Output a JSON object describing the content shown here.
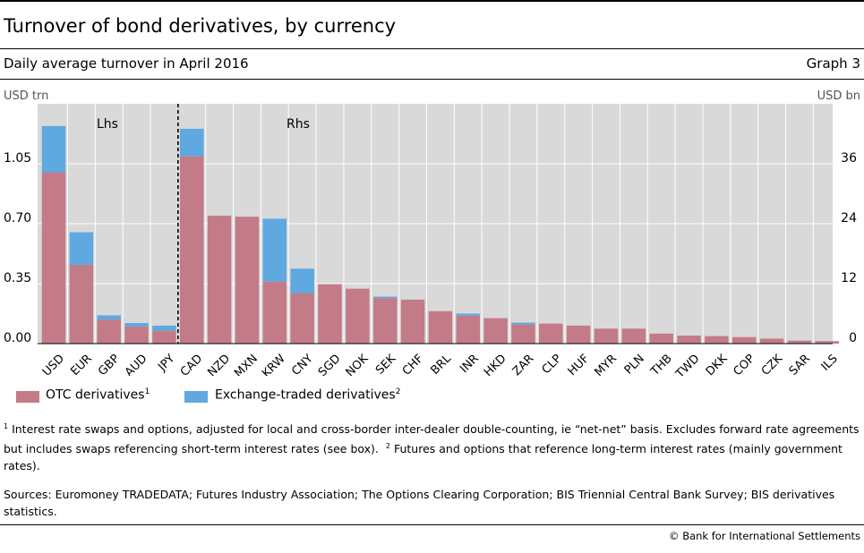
{
  "header": {
    "title": "Turnover of bond derivatives, by currency",
    "subtitle": "Daily average turnover in April 2016",
    "graph_number": "Graph 3"
  },
  "legend": {
    "otc_label": "OTC derivatives",
    "otc_sup": "1",
    "exchange_label": "Exchange-traded derivatives",
    "exchange_sup": "2"
  },
  "footnotes": {
    "note1_marker": "1",
    "note1_text": " Interest rate swaps and options, adjusted for local and cross-border inter-dealer double-counting, ie “net-net” basis. Excludes forward rate agreements but includes swaps referencing short-term interest rates (see box).",
    "note2_marker": "2",
    "note2_text": " Futures and options that reference long-term interest rates (mainly government rates)."
  },
  "sources": "Sources: Euromoney TRADEDATA; Futures Industry Association; The Options Clearing Corporation; BIS Triennial Central Bank Survey; BIS derivatives statistics.",
  "credit": "© Bank for International Settlements",
  "colors": {
    "otc": "#c27b87",
    "exchange": "#5fa8e0",
    "plot_background": "#d9d9d9",
    "gridline": "#ffffff"
  },
  "chart_data": {
    "type": "bar",
    "stacked": true,
    "left_axis": {
      "unit_label": "USD trn",
      "ylim": [
        0,
        1.4
      ],
      "ticks": [
        0,
        0.35,
        0.7,
        1.05
      ],
      "tick_labels": [
        "0.00",
        "0.35",
        "0.70",
        "1.05"
      ]
    },
    "right_axis": {
      "unit_label": "USD bn",
      "ylim": [
        0,
        48
      ],
      "ticks": [
        0,
        12,
        24,
        36
      ],
      "tick_labels": [
        "0",
        "12",
        "24",
        "36"
      ]
    },
    "annotations": {
      "left_panel": "Lhs",
      "right_panel": "Rhs"
    },
    "grid": true,
    "legend_position": "bottom-left",
    "panels": [
      {
        "axis": "left",
        "categories": [
          "USD",
          "EUR",
          "GBP",
          "AUD",
          "JPY"
        ],
        "series": [
          {
            "name": "OTC derivatives",
            "values": [
              1.0,
              0.46,
              0.14,
              0.1,
              0.075
            ]
          },
          {
            "name": "Exchange-traded derivatives",
            "values": [
              0.27,
              0.19,
              0.025,
              0.02,
              0.03
            ]
          }
        ]
      },
      {
        "axis": "right",
        "categories": [
          "CAD",
          "NZD",
          "MXN",
          "KRW",
          "CNY",
          "SGD",
          "NOK",
          "SEK",
          "CHF",
          "BRL",
          "INR",
          "HKD",
          "ZAR",
          "CLP",
          "HUF",
          "MYR",
          "PLN",
          "THB",
          "TWD",
          "DKK",
          "COP",
          "CZK",
          "SAR",
          "ILS"
        ],
        "series": [
          {
            "name": "OTC derivatives",
            "values": [
              37.5,
              25.6,
              25.4,
              12.4,
              10.1,
              11.9,
              11.0,
              9.1,
              8.8,
              6.5,
              5.6,
              5.1,
              3.8,
              4.0,
              3.6,
              3.0,
              3.0,
              2.0,
              1.6,
              1.5,
              1.3,
              1.0,
              0.6,
              0.5
            ]
          },
          {
            "name": "Exchange-traded derivatives",
            "values": [
              5.5,
              0,
              0,
              12.6,
              4.9,
              0,
              0,
              0.3,
              0,
              0,
              0.4,
              0,
              0.4,
              0,
              0,
              0,
              0,
              0,
              0,
              0,
              0,
              0,
              0,
              0
            ]
          }
        ]
      }
    ]
  }
}
